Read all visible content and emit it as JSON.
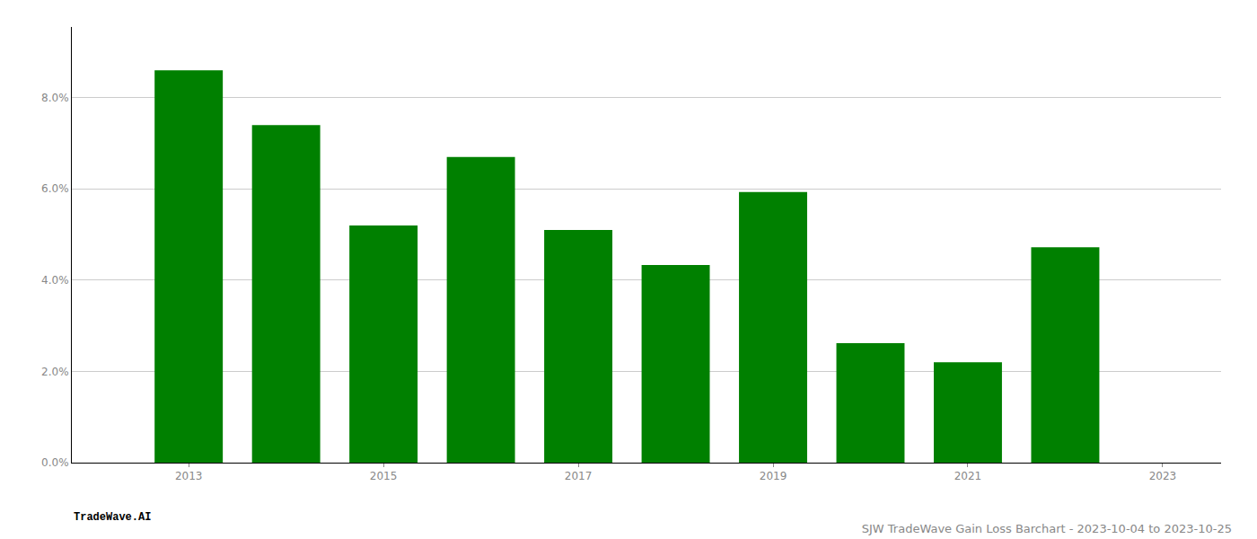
{
  "chart_data": {
    "type": "bar",
    "title": "SJW TradeWave Gain Loss Barchart - 2023-10-04 to 2023-10-25",
    "annotations": [
      "TradeWave.AI"
    ],
    "x": [
      2013,
      2014,
      2015,
      2016,
      2017,
      2018,
      2019,
      2020,
      2021,
      2022
    ],
    "values": [
      0.086,
      0.074,
      0.052,
      0.067,
      0.051,
      0.0433,
      0.0593,
      0.0262,
      0.022,
      0.0472
    ],
    "color": "#008000",
    "xlim": [
      2011.8,
      2023.6
    ],
    "xticks": [
      2013,
      2015,
      2017,
      2019,
      2021,
      2023
    ],
    "ylim": [
      0,
      0.0955
    ],
    "yticks": [
      {
        "value": 0.0,
        "label": "0.0%"
      },
      {
        "value": 0.02,
        "label": "2.0%"
      },
      {
        "value": 0.04,
        "label": "4.0%"
      },
      {
        "value": 0.06,
        "label": "6.0%"
      },
      {
        "value": 0.08,
        "label": "8.0%"
      }
    ],
    "grid": true
  }
}
